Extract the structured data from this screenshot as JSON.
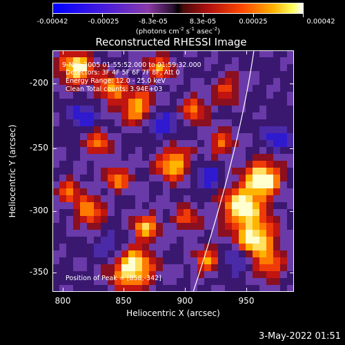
{
  "colorbar": {
    "labels": [
      "-0.00042",
      "-0.00025",
      "-8.3e-05",
      "8.3e-05",
      "0.00025",
      "0.00042"
    ],
    "units_prefix": "(photons cm",
    "units_exp1": "-2",
    "units_mid1": " s",
    "units_exp2": "-1",
    "units_mid2": " asec",
    "units_exp3": "-2",
    "units_suffix": ")",
    "range": [
      -0.00042,
      0.00042
    ],
    "colors": {
      "min": "#0000ff",
      "mid": "#000000",
      "max": "#ffffff"
    }
  },
  "title": "Reconstructed RHESSI Image",
  "info": {
    "time_range": "9-Nov-2005 01:55:52.000 to 01:59:32.000",
    "detectors": "Detectors: 3F 4F 5F 6F 7F 8F, Att 0",
    "energy": "Energy Range: 12.0 - 25.0 keV",
    "clean": "Clean     Total counts: 3.94E+03",
    "peak": "Position of Peak = [858,-342]"
  },
  "axes": {
    "xlabel": "Heliocentric X (arcsec)",
    "ylabel": "Heliocentric Y (arcsec)",
    "xticks": [
      "800",
      "850",
      "900",
      "950"
    ],
    "yticks": [
      "-200",
      "-250",
      "-300",
      "-350"
    ],
    "xlim": [
      788,
      985
    ],
    "ylim": [
      -368,
      -172
    ]
  },
  "timestamp": "3-May-2022 01:51"
}
